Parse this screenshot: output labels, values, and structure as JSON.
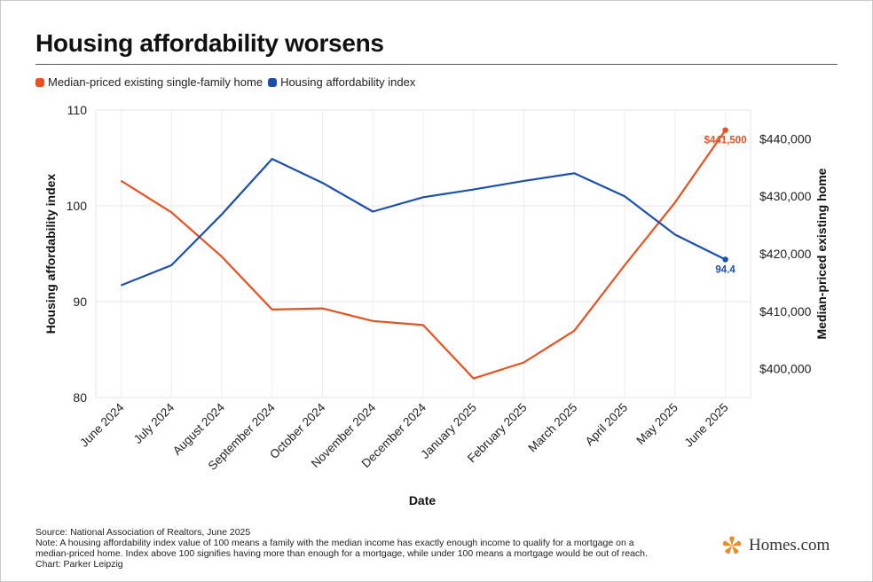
{
  "title": "Housing affordability worsens",
  "legend": [
    {
      "label": "Median-priced existing single-family home",
      "color": "#e8501f"
    },
    {
      "label": "Housing affordability index",
      "color": "#1a4fae"
    }
  ],
  "footer": {
    "source": "Source: National Association of Realtors, June 2025",
    "note_line1": "Note: A housing affordability index value of 100 means a family with the median income has exactly enough income to qualify for a mortgage on a",
    "note_line2": "median-priced home. Index above 100 signifies having more than enough for a mortgage, while under 100 means a mortgage would be out of reach.",
    "credit": "Chart: Parker Leipzig"
  },
  "brand": {
    "name": "Homes.com",
    "icon": "homes-com-logo-icon",
    "color": "#f28a21"
  },
  "chart_data": {
    "type": "line",
    "xlabel": "Date",
    "categories": [
      "June 2024",
      "July 2024",
      "August 2024",
      "September 2024",
      "October 2024",
      "November 2024",
      "December 2024",
      "January 2025",
      "February 2025",
      "March 2025",
      "April 2025",
      "May 2025",
      "June 2025"
    ],
    "grid": true,
    "y_left": {
      "label": "Housing affordability index",
      "range": [
        80,
        110
      ],
      "ticks": [
        "80",
        "90",
        "100",
        "110"
      ],
      "tick_values": [
        80,
        90,
        100,
        110
      ]
    },
    "y_right": {
      "label": "Median-priced existing home",
      "range": [
        395000,
        445000
      ],
      "ticks": [
        "$400,000",
        "$410,000",
        "$420,000",
        "$430,000",
        "$440,000"
      ],
      "tick_values": [
        400000,
        410000,
        420000,
        430000,
        440000
      ]
    },
    "series": [
      {
        "name": "Median-priced existing single-family home",
        "axis": "right",
        "color": "#e8501f",
        "values": [
          432700,
          427200,
          419500,
          410300,
          410500,
          408300,
          407600,
          398300,
          401100,
          406600,
          418000,
          428900,
          441500
        ],
        "end_label": "$441,500"
      },
      {
        "name": "Housing affordability index",
        "axis": "left",
        "color": "#1a4fae",
        "values": [
          91.7,
          93.8,
          99.1,
          104.9,
          102.4,
          99.4,
          100.9,
          101.7,
          102.6,
          103.4,
          101.0,
          97.0,
          94.4
        ],
        "end_label": "94.4"
      }
    ]
  }
}
